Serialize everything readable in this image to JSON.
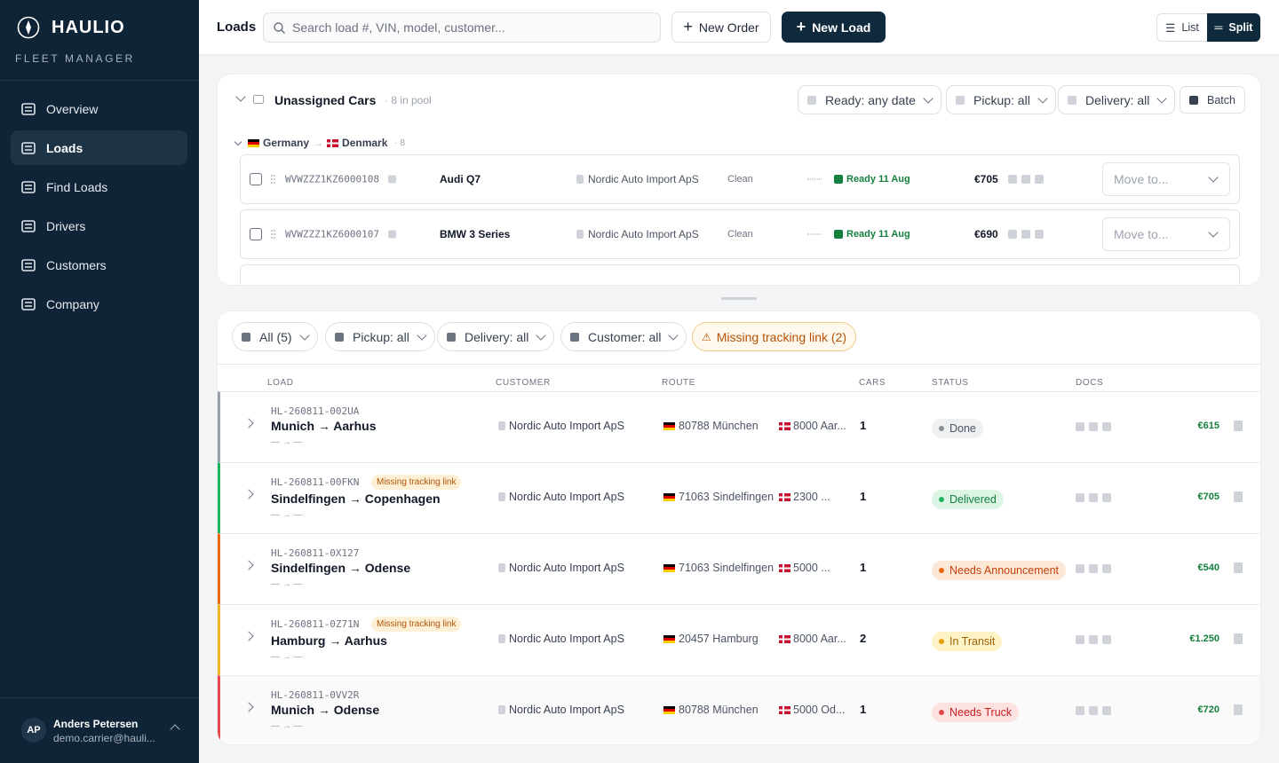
{
  "sidebar": {
    "brand": "HAULIO",
    "subtitle": "FLEET MANAGER",
    "nav": [
      "Overview",
      "Loads",
      "Find Loads",
      "Drivers",
      "Customers",
      "Company"
    ],
    "active": 1,
    "user": {
      "initials": "AP",
      "name": "Anders Petersen",
      "email": "demo.carrier@hauli..."
    }
  },
  "topbar": {
    "title": "Loads",
    "search_placeholder": "Search load #, VIN, model, customer...",
    "new_order": "New Order",
    "new_load": "New Load",
    "views": [
      "List",
      "Split"
    ]
  },
  "pool": {
    "title": "Unassigned Cars",
    "count": "· 8 in pool",
    "filters": [
      "Ready: any date",
      "Pickup: all",
      "Delivery: all"
    ],
    "batch": "Batch",
    "group": {
      "from": "Germany",
      "to": "Denmark",
      "count": "· 8"
    },
    "cars": [
      {
        "vin": "WVWZZZ1KZ6000108",
        "model": "Audi Q7",
        "customer": "Nordic Auto Import ApS",
        "condition": "Clean",
        "ready": "Ready 11 Aug",
        "price": "€705",
        "move": "Move to..."
      },
      {
        "vin": "WVWZZZ1KZ6000107",
        "model": "BMW 3 Series",
        "customer": "Nordic Auto Import ApS",
        "condition": "Clean",
        "ready": "Ready 11 Aug",
        "price": "€690",
        "move": "Move to..."
      }
    ]
  },
  "loads": {
    "filters": [
      "All (5)",
      "Pickup: all",
      "Delivery: all",
      "Customer: all"
    ],
    "warning_filter": "Missing tracking link (2)",
    "headers": [
      "LOAD",
      "CUSTOMER",
      "ROUTE",
      "CARS",
      "STATUS",
      "DOCS"
    ],
    "rows": [
      {
        "id": "HL-260811-002UA",
        "title": "Munich → Aarhus",
        "dates": "— → —",
        "customer": "Nordic Auto Import ApS",
        "from": "80788 München",
        "to": "8000 Aar...",
        "cars": "1",
        "status": "Done",
        "price": "€615",
        "color": "#9aa0a8"
      },
      {
        "id": "HL-260811-00FKN",
        "warning": "Missing tracking link",
        "title": "Sindelfingen → Copenhagen",
        "dates": "— → —",
        "customer": "Nordic Auto Import ApS",
        "from": "71063 Sindelfingen",
        "to": "2300 ...",
        "cars": "1",
        "status": "Delivered",
        "price": "€705",
        "color": "#22b35e"
      },
      {
        "id": "HL-260811-0X127",
        "title": "Sindelfingen → Odense",
        "dates": "— → —",
        "customer": "Nordic Auto Import ApS",
        "from": "71063 Sindelfingen",
        "to": "5000 ...",
        "cars": "1",
        "status": "Needs Announcement",
        "price": "€540",
        "color": "#ea6a12"
      },
      {
        "id": "HL-260811-0Z71N",
        "warning": "Missing tracking link",
        "title": "Hamburg → Aarhus",
        "dates": "— → —",
        "customer": "Nordic Auto Import ApS",
        "from": "20457 Hamburg",
        "to": "8000 Aar...",
        "cars": "2",
        "status": "In Transit",
        "price": "€1.250",
        "color": "#f0b429"
      },
      {
        "id": "HL-260811-0VV2R",
        "title": "Munich → Odense",
        "dates": "— → —",
        "customer": "Nordic Auto Import ApS",
        "from": "80788 München",
        "to": "5000 Od...",
        "cars": "1",
        "status": "Needs Truck",
        "price": "€720",
        "color": "#e5484d"
      }
    ]
  }
}
